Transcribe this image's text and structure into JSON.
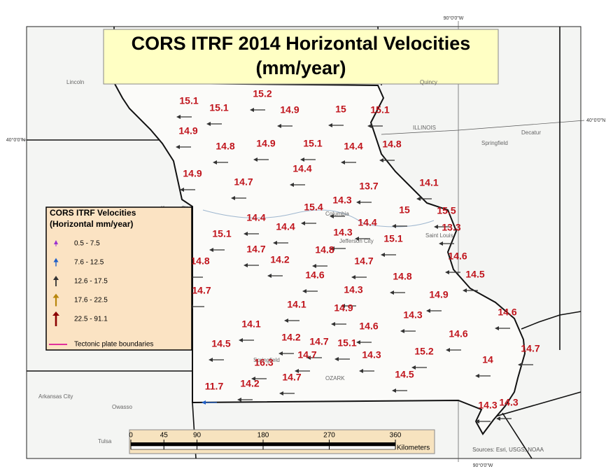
{
  "title": "CORS ITRF 2014 Horizontal Velocities",
  "title_unit": "(mm/year)",
  "graticule": {
    "lon_top": "90°0'0\"W",
    "lon_bottom": "90°0'0\"W",
    "lat_left": "40°0'0\"N",
    "lat_right": "40°0'0\"N"
  },
  "places": [
    "Lincoln",
    "ILLINOIS",
    "Springfield",
    "Kansas City",
    "Jefferson City",
    "Saint Louis",
    "Columbia",
    "Springfield",
    "OZARK",
    "Arkansas City",
    "Owasso",
    "Tulsa",
    "Quincy",
    "Decatur"
  ],
  "legend": {
    "title": "CORS ITRF Velocities",
    "subtitle": "(Horizontal mm/year)",
    "items": [
      {
        "label": "0.5 - 7.5",
        "color": "#9b30d0"
      },
      {
        "label": "7.6 - 12.5",
        "color": "#1f5fc8"
      },
      {
        "label": "12.6 - 17.5",
        "color": "#333333"
      },
      {
        "label": "17.6 - 22.5",
        "color": "#b8860b"
      },
      {
        "label": "22.5 - 91.1",
        "color": "#8b0000"
      }
    ],
    "boundary": {
      "label": "Tectonic plate boundaries",
      "color": "#e0309a"
    }
  },
  "stations": [
    {
      "velocity": 15.1,
      "color": "#333333"
    },
    {
      "velocity": 15.2,
      "color": "#333333"
    },
    {
      "velocity": 15.1,
      "color": "#333333"
    },
    {
      "velocity": 14.9,
      "color": "#333333"
    },
    {
      "velocity": 15,
      "color": "#333333"
    },
    {
      "velocity": 15.1,
      "color": "#333333"
    },
    {
      "velocity": 14.9,
      "color": "#333333"
    },
    {
      "velocity": 14.8,
      "color": "#333333"
    },
    {
      "velocity": 14.9,
      "color": "#333333"
    },
    {
      "velocity": 15.1,
      "color": "#333333"
    },
    {
      "velocity": 14.4,
      "color": "#333333"
    },
    {
      "velocity": 14.8,
      "color": "#333333"
    },
    {
      "velocity": 14.4,
      "color": "#333333"
    },
    {
      "velocity": 14.9,
      "color": "#333333"
    },
    {
      "velocity": 14.7,
      "color": "#333333"
    },
    {
      "velocity": 13.7,
      "color": "#333333"
    },
    {
      "velocity": 14.1,
      "color": "#333333"
    },
    {
      "velocity": 14.3,
      "color": "#333333"
    },
    {
      "velocity": 15.4,
      "color": "#333333"
    },
    {
      "velocity": 15,
      "color": "#333333"
    },
    {
      "velocity": 15.5,
      "color": "#333333"
    },
    {
      "velocity": 14.4,
      "color": "#333333"
    },
    {
      "velocity": 14.4,
      "color": "#333333"
    },
    {
      "velocity": 14.4,
      "color": "#333333"
    },
    {
      "velocity": 13.3,
      "color": "#333333"
    },
    {
      "velocity": 15.1,
      "color": "#333333"
    },
    {
      "velocity": 14.3,
      "color": "#333333"
    },
    {
      "velocity": 15.1,
      "color": "#333333"
    },
    {
      "velocity": 14.7,
      "color": "#333333"
    },
    {
      "velocity": 14.8,
      "color": "#333333"
    },
    {
      "velocity": 14.2,
      "color": "#333333"
    },
    {
      "velocity": 14.7,
      "color": "#333333"
    },
    {
      "velocity": 14.6,
      "color": "#333333"
    },
    {
      "velocity": 14.8,
      "color": "#333333"
    },
    {
      "velocity": 14.5,
      "color": "#333333"
    },
    {
      "velocity": 14.6,
      "color": "#333333"
    },
    {
      "velocity": 14.8,
      "color": "#333333"
    },
    {
      "velocity": 14.7,
      "color": "#333333"
    },
    {
      "velocity": 14.3,
      "color": "#333333"
    },
    {
      "velocity": 14.9,
      "color": "#333333"
    },
    {
      "velocity": 14.1,
      "color": "#333333"
    },
    {
      "velocity": 14.9,
      "color": "#333333"
    },
    {
      "velocity": 14.6,
      "color": "#333333"
    },
    {
      "velocity": 14.3,
      "color": "#333333"
    },
    {
      "velocity": 14.1,
      "color": "#333333"
    },
    {
      "velocity": 14.6,
      "color": "#333333"
    },
    {
      "velocity": 14.6,
      "color": "#333333"
    },
    {
      "velocity": 14.2,
      "color": "#333333"
    },
    {
      "velocity": 14.7,
      "color": "#333333"
    },
    {
      "velocity": 15.1,
      "color": "#333333"
    },
    {
      "velocity": 14.5,
      "color": "#333333"
    },
    {
      "velocity": 14.7,
      "color": "#333333"
    },
    {
      "velocity": 14.7,
      "color": "#333333"
    },
    {
      "velocity": 14.3,
      "color": "#333333"
    },
    {
      "velocity": 15.2,
      "color": "#333333"
    },
    {
      "velocity": 16.3,
      "color": "#333333"
    },
    {
      "velocity": 14,
      "color": "#333333"
    },
    {
      "velocity": 14.5,
      "color": "#333333"
    },
    {
      "velocity": 14.7,
      "color": "#333333"
    },
    {
      "velocity": 14.2,
      "color": "#333333"
    },
    {
      "velocity": 11.7,
      "color": "#1f5fc8"
    },
    {
      "velocity": 14.3,
      "color": "#333333"
    },
    {
      "velocity": 14.3,
      "color": "#333333"
    }
  ],
  "scale": {
    "ticks": [
      0,
      45,
      90,
      180,
      270,
      360
    ],
    "unit": "Kilometers"
  },
  "attribution": "Sources: Esri, USGS, NOAA"
}
